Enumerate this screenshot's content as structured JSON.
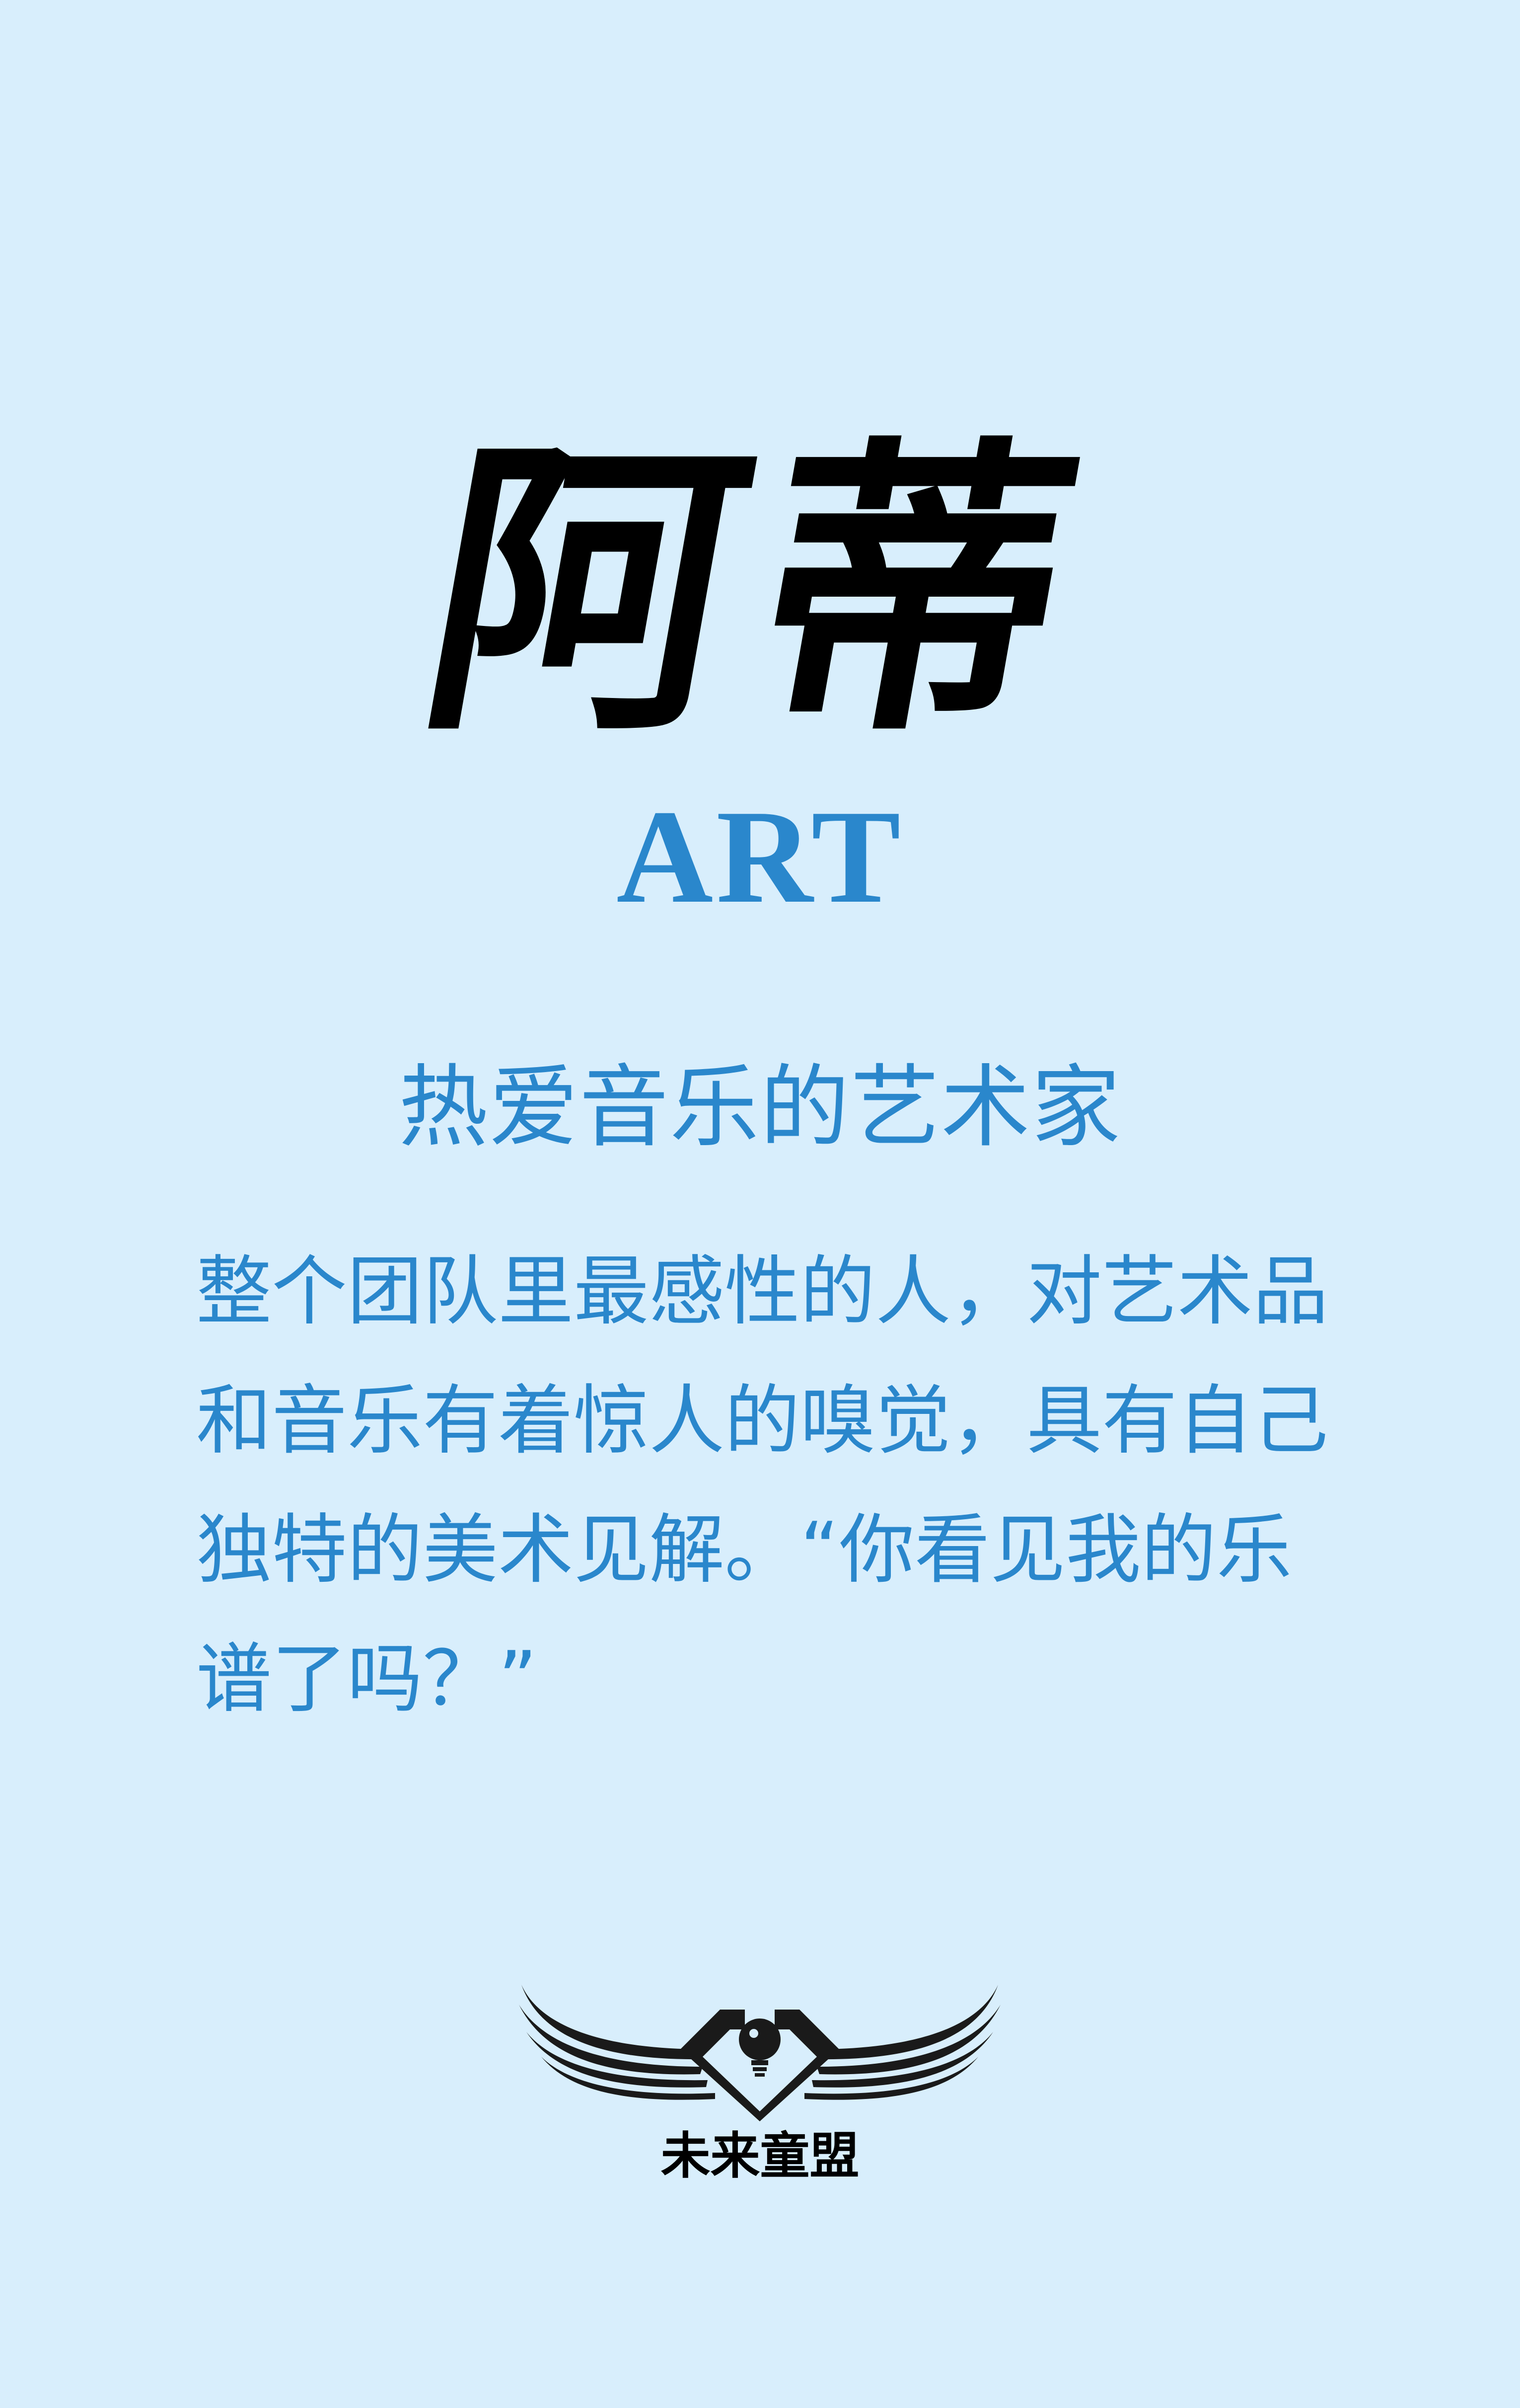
{
  "title": {
    "name_cn": "阿蒂",
    "name_en": "ART"
  },
  "subtitle": "热爱音乐的艺术家",
  "description": {
    "lines": [
      "整个团队里最感性的人，对艺术品",
      "和音乐有着惊人的嗅觉，具有自己",
      "独特的美术见解。“你看见我的乐",
      "谱了吗？”"
    ]
  },
  "brand": {
    "name": "未来童盟",
    "icon": "winged-lightbulb-logo-icon"
  },
  "colors": {
    "background": "#d8eefc",
    "accent": "#2a87cc",
    "title": "#000000"
  }
}
